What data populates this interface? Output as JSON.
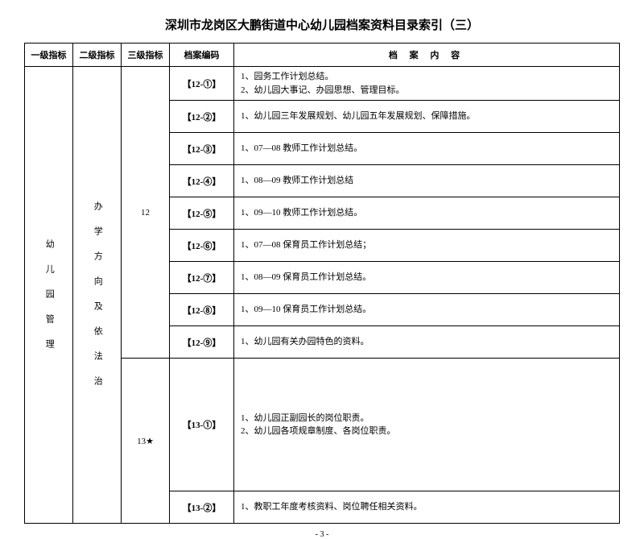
{
  "title": "深圳市龙岗区大鹏街道中心幼儿园档案资料目录索引（三）",
  "headers": {
    "col1": "一级指标",
    "col2": "二级指标",
    "col3": "三级指标",
    "col4": "档案编码",
    "col5": "档 案 内 容"
  },
  "level1": "幼 儿 园 管 理",
  "level2": "办 学 方 向 及 依 法 治",
  "level3a": "12",
  "level3b": "13★",
  "rows": [
    {
      "code": "【12-①】",
      "content": "1、园务工作计划总结。\n2、幼儿园大事记、办园思想、管理目标。"
    },
    {
      "code": "【12-②】",
      "content": "1、幼儿园三年发展规划、幼儿园五年发展规划、保障措施。"
    },
    {
      "code": "【12-③】",
      "content": "1、07—08 教师工作计划总结。"
    },
    {
      "code": "【12-④】",
      "content": "1、08—09 教师工作计划总结"
    },
    {
      "code": "【12-⑤】",
      "content": "1、09—10 教师工作计划总结。"
    },
    {
      "code": "【12-⑥】",
      "content": "1、07—08 保育员工作计划总结；"
    },
    {
      "code": "【12-⑦】",
      "content": "1、08—09 保育员工作计划总结。"
    },
    {
      "code": "【12-⑧】",
      "content": "1、09—10 保育员工作计划总结。"
    },
    {
      "code": "【12-⑨】",
      "content": "1、幼儿园有关办园特色的资料。"
    },
    {
      "code": "【13-①】",
      "content": "1、幼儿园正副园长的岗位职责。\n2、幼儿园各项规章制度、各岗位职责。"
    },
    {
      "code": "【13-②】",
      "content": "1、教职工年度考核资料、岗位聘任相关资料。"
    }
  ],
  "footer": "- 3 -"
}
